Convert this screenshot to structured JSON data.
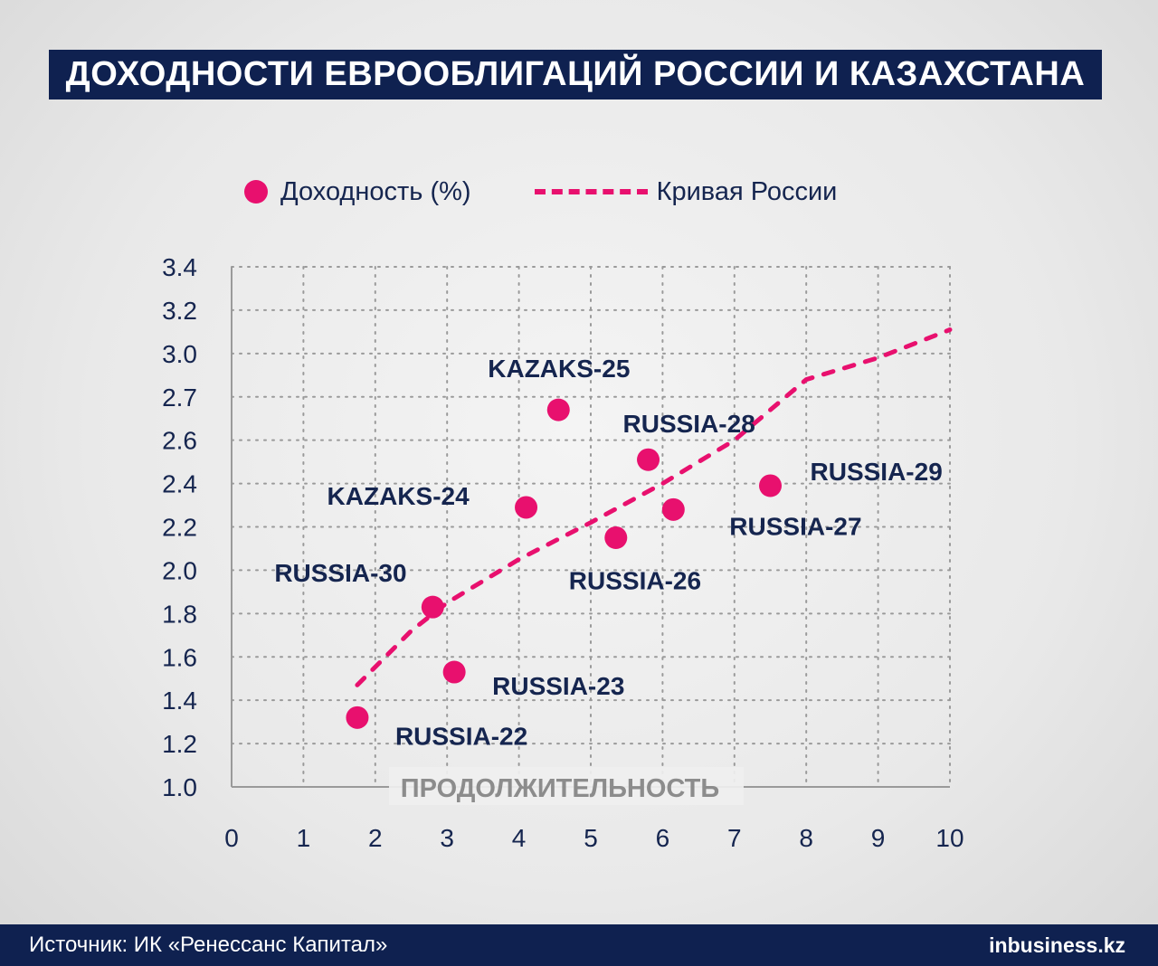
{
  "title": "ДОХОДНОСТИ ЕВРООБЛИГАЦИЙ РОССИИ И КАЗАХСТАНА",
  "footer": {
    "source": "Источник: ИК «Ренессанс Капитал»",
    "brand_prefix": "in",
    "brand_rest": "business.kz"
  },
  "colors": {
    "accent": "#e8106e",
    "navy": "#0f2150",
    "text": "#15254f"
  },
  "chart_data": {
    "type": "scatter",
    "xlabel": "ПРОДОЛЖИТЕЛЬНОСТЬ",
    "ylabel": "",
    "xlim": [
      0,
      10
    ],
    "ylim": [
      1.0,
      3.4
    ],
    "x_ticks": [
      0,
      1,
      2,
      3,
      4,
      5,
      6,
      7,
      8,
      9,
      10
    ],
    "y_ticks": [
      1.0,
      1.2,
      1.4,
      1.6,
      1.8,
      2.0,
      2.2,
      2.4,
      2.6,
      2.7,
      3.0,
      3.2,
      3.4
    ],
    "y_tick_labels": [
      "1.0",
      "1.2",
      "1.4",
      "1.6",
      "1.8",
      "2.0",
      "2.2",
      "2.4",
      "2.6",
      "2.7",
      "3.0",
      "3.2",
      "3.4"
    ],
    "grid": true,
    "legend": {
      "placement": "top",
      "entries": [
        {
          "label": "Доходность (%)",
          "marker": "dot"
        },
        {
          "label": "Кривая России",
          "marker": "dashed-line"
        }
      ]
    },
    "series": [
      {
        "name": "Доходность (%)",
        "points": [
          {
            "label": "RUSSIA-22",
            "x": 1.75,
            "y": 1.32
          },
          {
            "label": "RUSSIA-23",
            "x": 3.1,
            "y": 1.53
          },
          {
            "label": "RUSSIA-30",
            "x": 2.8,
            "y": 1.83
          },
          {
            "label": "KAZAKS-24",
            "x": 4.1,
            "y": 2.29
          },
          {
            "label": "KAZAKS-25",
            "x": 4.55,
            "y": 2.67
          },
          {
            "label": "RUSSIA-26",
            "x": 5.35,
            "y": 2.15
          },
          {
            "label": "RUSSIA-28",
            "x": 5.8,
            "y": 2.51
          },
          {
            "label": "RUSSIA-27",
            "x": 6.15,
            "y": 2.28
          },
          {
            "label": "RUSSIA-29",
            "x": 7.5,
            "y": 2.39
          }
        ]
      },
      {
        "name": "Кривая России",
        "style": "dashed",
        "curve": [
          {
            "x": 1.75,
            "y": 1.47
          },
          {
            "x": 2.5,
            "y": 1.72
          },
          {
            "x": 3.0,
            "y": 1.85
          },
          {
            "x": 4.0,
            "y": 2.05
          },
          {
            "x": 5.0,
            "y": 2.22
          },
          {
            "x": 6.0,
            "y": 2.4
          },
          {
            "x": 7.0,
            "y": 2.6
          },
          {
            "x": 8.0,
            "y": 2.82
          },
          {
            "x": 9.0,
            "y": 2.97
          },
          {
            "x": 10.0,
            "y": 3.11
          }
        ]
      }
    ]
  }
}
